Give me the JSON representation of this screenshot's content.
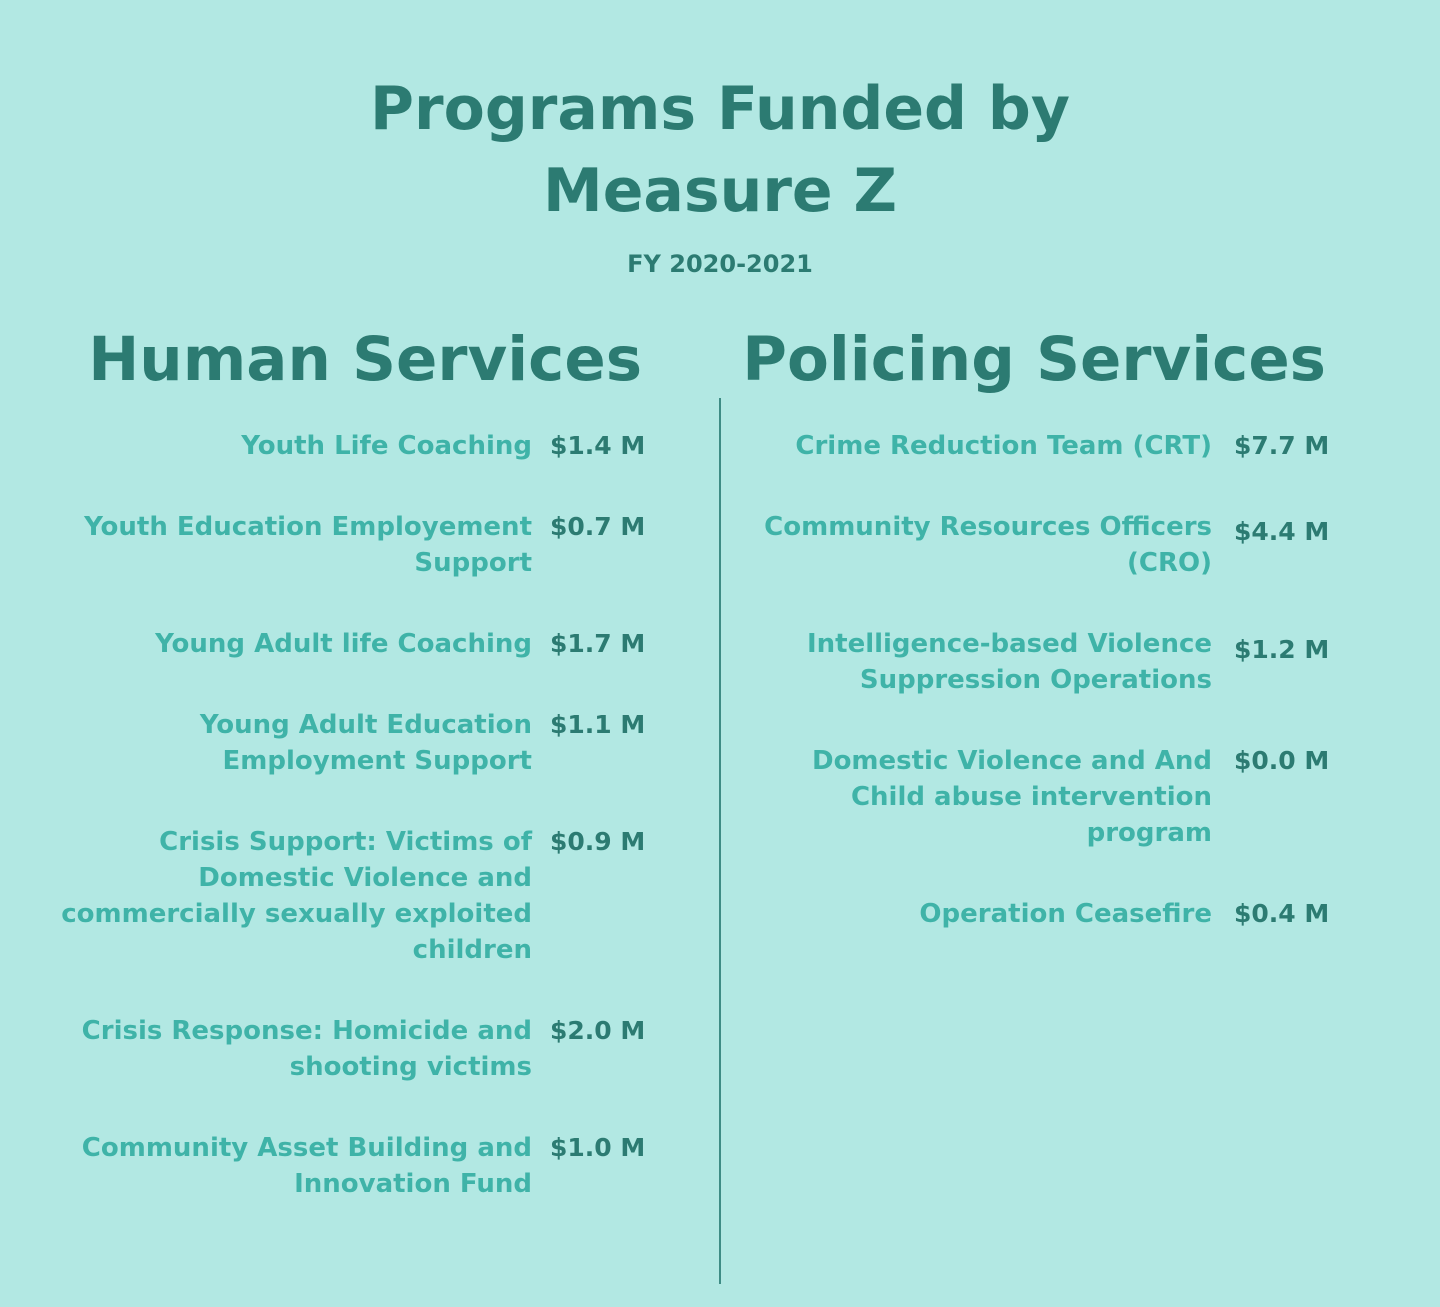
{
  "title": {
    "line1": "Programs Funded by",
    "line2": "Measure Z"
  },
  "subtitle": "FY 2020-2021",
  "human_services": {
    "heading": "Human Services",
    "items": [
      {
        "label": "Youth Life Coaching",
        "amount": "$1.4 M"
      },
      {
        "label": "Youth Education Employement Support",
        "amount": "$0.7 M"
      },
      {
        "label": "Young Adult life Coaching",
        "amount": "$1.7 M"
      },
      {
        "label": "Young Adult Education Employment Support",
        "amount": "$1.1 M"
      },
      {
        "label": "Crisis Support: Victims of Domestic Violence and commercially sexually exploited children",
        "amount": "$0.9 M"
      },
      {
        "label": "Crisis Response: Homicide and shooting victims",
        "amount": "$2.0 M"
      },
      {
        "label": "Community Asset Building and Innovation Fund",
        "amount": "$1.0 M"
      }
    ]
  },
  "policing_services": {
    "heading": "Policing Services",
    "items": [
      {
        "label": "Crime Reduction Team (CRT)",
        "amount": "$7.7 M"
      },
      {
        "label": "Community Resources Officers (CRO)",
        "amount": "$4.4 M"
      },
      {
        "label": "Intelligence-based Violence Suppression Operations",
        "amount": "$1.2 M"
      },
      {
        "label": "Domestic Violence and And Child abuse intervention program",
        "amount": "$0.0 M"
      },
      {
        "label": "Operation Ceasefire",
        "amount": "$0.4 M"
      }
    ]
  },
  "colors": {
    "background": "#b2e8e3",
    "heading": "#2c7b72",
    "label": "#3fb3a8",
    "divider": "#3e8c85"
  }
}
